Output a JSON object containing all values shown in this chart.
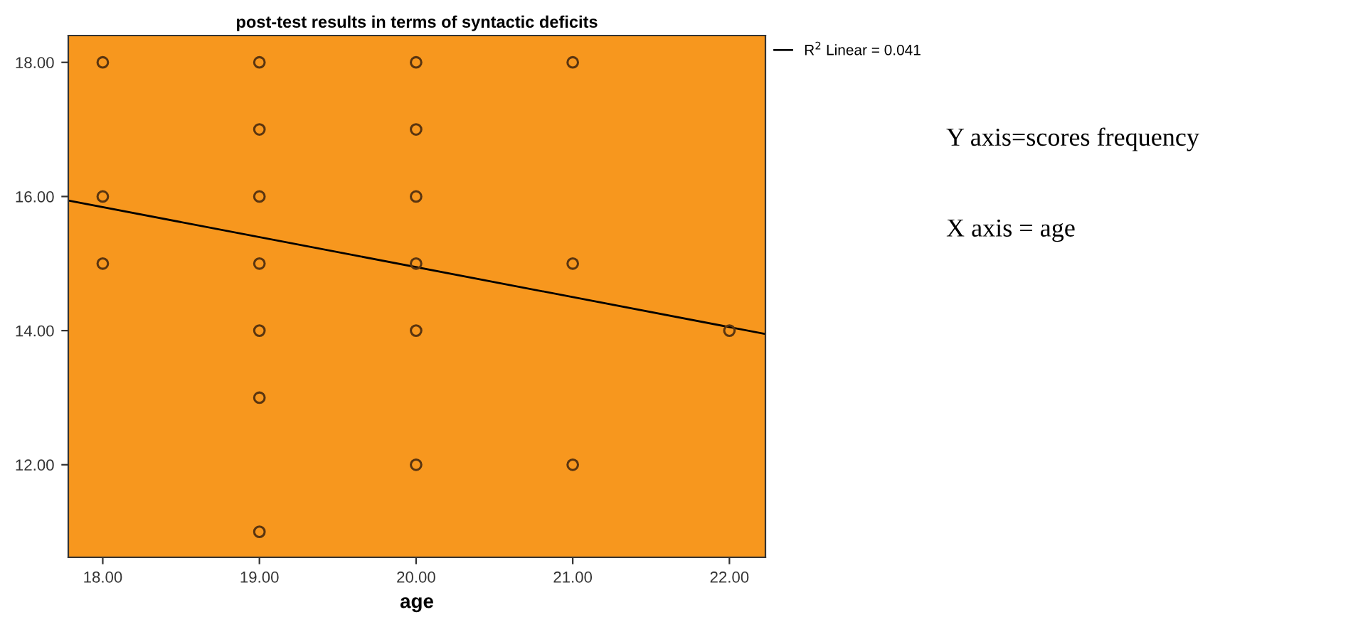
{
  "chart_data": {
    "type": "scatter",
    "title": "post-test results in terms of syntactic deficits",
    "xlabel": "age",
    "xlim": [
      17.78,
      22.23
    ],
    "ylim": [
      10.62,
      18.4
    ],
    "xticks": [
      {
        "value": 18,
        "label": "18.00"
      },
      {
        "value": 19,
        "label": "19.00"
      },
      {
        "value": 20,
        "label": "20.00"
      },
      {
        "value": 21,
        "label": "21.00"
      },
      {
        "value": 22,
        "label": "22.00"
      }
    ],
    "yticks": [
      {
        "value": 12,
        "label": "12.00"
      },
      {
        "value": 14,
        "label": "14.00"
      },
      {
        "value": 16,
        "label": "16.00"
      },
      {
        "value": 18,
        "label": "18.00"
      }
    ],
    "grid": false,
    "legend": "top right",
    "series": [
      {
        "marker": "circle",
        "color": "#5a3510",
        "x": [
          18,
          18,
          18,
          19,
          19,
          19,
          19,
          19,
          19,
          19,
          20,
          20,
          20,
          20,
          20,
          20,
          21,
          21,
          21,
          22
        ],
        "values": [
          18,
          16,
          15,
          18,
          17,
          16,
          15,
          14,
          13,
          11,
          18,
          17,
          16,
          15,
          14,
          12,
          18,
          15,
          12,
          14
        ]
      },
      {
        "type": "line",
        "marker": "none",
        "name": "R$^{2}$ Linear = 0.041",
        "color": "#000000",
        "x": [
          17.78,
          22.23
        ],
        "values": [
          15.94,
          13.95
        ]
      }
    ],
    "annotations": [
      "Y axis=scores frequency",
      "X axis = age"
    ]
  }
}
